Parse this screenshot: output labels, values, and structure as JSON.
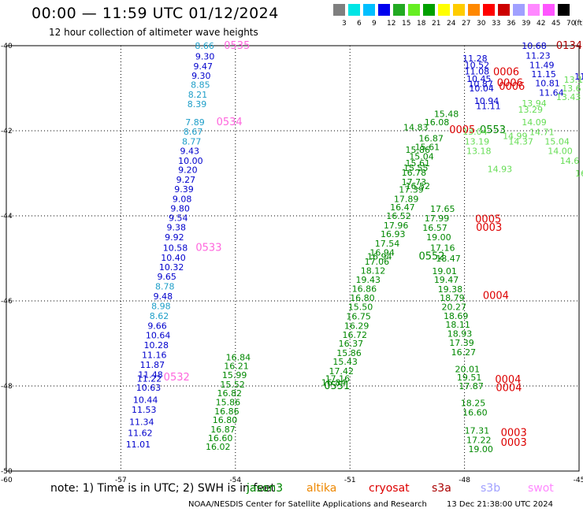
{
  "header": {
    "title": "00:00 — 11:59 UTC 01/12/2024",
    "subtitle": "12 hour collection of altimeter wave heights"
  },
  "legend": {
    "colors": [
      "#7f7f7f",
      "#00e5e5",
      "#00bfff",
      "#0000ee",
      "#22aa22",
      "#66ee22",
      "#00a000",
      "#ffff00",
      "#ffcc00",
      "#ff8800",
      "#ff0000",
      "#cc0000",
      "#a0a0ff",
      "#ff88ff",
      "#ff55ff",
      "#000000"
    ],
    "labels": [
      "3",
      "6",
      "9",
      "12",
      "15",
      "18",
      "21",
      "24",
      "27",
      "30",
      "33",
      "36",
      "39",
      "42",
      "45",
      "70",
      "(ft)"
    ]
  },
  "axes": {
    "x_ticks": [
      "-57",
      "-54",
      "-51",
      "-48",
      "-45"
    ],
    "y_ticks": [
      "-40",
      "-42",
      "-44",
      "-46",
      "-48",
      "-50"
    ],
    "corner_label": "-60"
  },
  "colors": {
    "blue": "#0000cc",
    "cyan": "#1e9ec8",
    "pink": "#ff66dd",
    "green": "#008800",
    "lightgreen": "#66dd55",
    "red": "#dd0000",
    "darkred": "#aa0000"
  },
  "map_labels": [
    {
      "t": "8.66",
      "c": "cyan",
      "lon": -55.06,
      "lat": -40.0
    },
    {
      "t": "0535",
      "c": "pink",
      "lon": -54.3,
      "lat": -40.0
    },
    {
      "t": "9.30",
      "c": "blue",
      "lon": -55.05,
      "lat": -40.25
    },
    {
      "t": "9.47",
      "c": "blue",
      "lon": -55.1,
      "lat": -40.48
    },
    {
      "t": "9.30",
      "c": "blue",
      "lon": -55.15,
      "lat": -40.7
    },
    {
      "t": "8.85",
      "c": "cyan",
      "lon": -55.17,
      "lat": -40.92
    },
    {
      "t": "8.21",
      "c": "cyan",
      "lon": -55.24,
      "lat": -41.15
    },
    {
      "t": "8.39",
      "c": "cyan",
      "lon": -55.26,
      "lat": -41.37
    },
    {
      "t": "7.89",
      "c": "cyan",
      "lon": -55.31,
      "lat": -41.8
    },
    {
      "t": "0534",
      "c": "pink",
      "lon": -54.5,
      "lat": -41.8
    },
    {
      "t": "8.67",
      "c": "cyan",
      "lon": -55.36,
      "lat": -42.02
    },
    {
      "t": "8.77",
      "c": "cyan",
      "lon": -55.4,
      "lat": -42.25
    },
    {
      "t": "9.43",
      "c": "blue",
      "lon": -55.45,
      "lat": -42.47
    },
    {
      "t": "10.00",
      "c": "blue",
      "lon": -55.5,
      "lat": -42.7
    },
    {
      "t": "9.20",
      "c": "blue",
      "lon": -55.5,
      "lat": -42.92
    },
    {
      "t": "9.27",
      "c": "blue",
      "lon": -55.55,
      "lat": -43.15
    },
    {
      "t": "9.39",
      "c": "blue",
      "lon": -55.6,
      "lat": -43.37
    },
    {
      "t": "9.08",
      "c": "blue",
      "lon": -55.65,
      "lat": -43.6
    },
    {
      "t": "9.80",
      "c": "blue",
      "lon": -55.7,
      "lat": -43.82
    },
    {
      "t": "9.54",
      "c": "blue",
      "lon": -55.75,
      "lat": -44.05
    },
    {
      "t": "9.38",
      "c": "blue",
      "lon": -55.8,
      "lat": -44.27
    },
    {
      "t": "9.92",
      "c": "blue",
      "lon": -55.85,
      "lat": -44.5
    },
    {
      "t": "10.58",
      "c": "blue",
      "lon": -55.9,
      "lat": -44.75
    },
    {
      "t": "0533",
      "c": "pink",
      "lon": -55.04,
      "lat": -44.75
    },
    {
      "t": "10.40",
      "c": "blue",
      "lon": -55.95,
      "lat": -44.98
    },
    {
      "t": "10.32",
      "c": "blue",
      "lon": -56.0,
      "lat": -45.2
    },
    {
      "t": "9.65",
      "c": "blue",
      "lon": -56.05,
      "lat": -45.43
    },
    {
      "t": "8.78",
      "c": "cyan",
      "lon": -56.1,
      "lat": -45.66
    },
    {
      "t": "9.48",
      "c": "blue",
      "lon": -56.15,
      "lat": -45.89
    },
    {
      "t": "8.98",
      "c": "cyan",
      "lon": -56.2,
      "lat": -46.12
    },
    {
      "t": "8.62",
      "c": "cyan",
      "lon": -56.25,
      "lat": -46.35
    },
    {
      "t": "9.66",
      "c": "blue",
      "lon": -56.3,
      "lat": -46.58
    },
    {
      "t": "10.64",
      "c": "blue",
      "lon": -56.35,
      "lat": -46.81
    },
    {
      "t": "10.28",
      "c": "blue",
      "lon": -56.4,
      "lat": -47.04
    },
    {
      "t": "11.16",
      "c": "blue",
      "lon": -56.45,
      "lat": -47.27
    },
    {
      "t": "11.87",
      "c": "blue",
      "lon": -56.5,
      "lat": -47.5
    },
    {
      "t": "11.48",
      "c": "blue",
      "lon": -56.55,
      "lat": -47.73
    },
    {
      "t": "0532",
      "c": "pink",
      "lon": -55.88,
      "lat": -47.8
    },
    {
      "t": "11.22",
      "c": "blue",
      "lon": -56.58,
      "lat": -47.82
    },
    {
      "t": "10.63",
      "c": "blue",
      "lon": -56.6,
      "lat": -48.04
    },
    {
      "t": "10.44",
      "c": "blue",
      "lon": -56.68,
      "lat": -48.32
    },
    {
      "t": "11.53",
      "c": "blue",
      "lon": -56.72,
      "lat": -48.56
    },
    {
      "t": "11.34",
      "c": "blue",
      "lon": -56.78,
      "lat": -48.84
    },
    {
      "t": "11.62",
      "c": "blue",
      "lon": -56.82,
      "lat": -49.1
    },
    {
      "t": "11.01",
      "c": "blue",
      "lon": -56.87,
      "lat": -49.37
    },
    {
      "t": "16.02",
      "c": "green",
      "lon": -54.78,
      "lat": -49.43
    },
    {
      "t": "16.60",
      "c": "green",
      "lon": -54.72,
      "lat": -49.22
    },
    {
      "t": "16.87",
      "c": "green",
      "lon": -54.65,
      "lat": -49.02
    },
    {
      "t": "16.80",
      "c": "green",
      "lon": -54.6,
      "lat": -48.8
    },
    {
      "t": "16.86",
      "c": "green",
      "lon": -54.55,
      "lat": -48.59
    },
    {
      "t": "16.82",
      "c": "green",
      "lon": -54.48,
      "lat": -48.17
    },
    {
      "t": "15.86",
      "c": "green",
      "lon": -54.52,
      "lat": -48.38
    },
    {
      "t": "15.52",
      "c": "green",
      "lon": -54.4,
      "lat": -47.96
    },
    {
      "t": "15.99",
      "c": "green",
      "lon": -54.35,
      "lat": -47.74
    },
    {
      "t": "16.21",
      "c": "green",
      "lon": -54.3,
      "lat": -47.53
    },
    {
      "t": "16.84",
      "c": "green",
      "lon": -54.25,
      "lat": -47.32
    },
    {
      "t": "0551",
      "c": "green",
      "lon": -51.68,
      "lat": -48.0
    },
    {
      "t": "17.16",
      "c": "green",
      "lon": -51.65,
      "lat": -47.82
    },
    {
      "t": "16.84",
      "c": "green",
      "lon": -51.75,
      "lat": -47.92
    },
    {
      "t": "17.42",
      "c": "green",
      "lon": -51.55,
      "lat": -47.65
    },
    {
      "t": "15.43",
      "c": "green",
      "lon": -51.45,
      "lat": -47.43
    },
    {
      "t": "15.86",
      "c": "green",
      "lon": -51.35,
      "lat": -47.22
    },
    {
      "t": "16.37",
      "c": "green",
      "lon": -51.3,
      "lat": -47.0
    },
    {
      "t": "16.72",
      "c": "green",
      "lon": -51.2,
      "lat": -46.8
    },
    {
      "t": "16.29",
      "c": "green",
      "lon": -51.15,
      "lat": -46.58
    },
    {
      "t": "16.75",
      "c": "green",
      "lon": -51.1,
      "lat": -46.36
    },
    {
      "t": "15.50",
      "c": "green",
      "lon": -51.05,
      "lat": -46.14
    },
    {
      "t": "16.80",
      "c": "green",
      "lon": -51.0,
      "lat": -45.93
    },
    {
      "t": "16.86",
      "c": "green",
      "lon": -50.95,
      "lat": -45.71
    },
    {
      "t": "19.43",
      "c": "green",
      "lon": -50.85,
      "lat": -45.5
    },
    {
      "t": "18.12",
      "c": "green",
      "lon": -50.72,
      "lat": -45.29
    },
    {
      "t": "17.06",
      "c": "green",
      "lon": -50.62,
      "lat": -45.07
    },
    {
      "t": "16.94",
      "c": "green",
      "lon": -50.48,
      "lat": -44.86
    },
    {
      "t": "16.94",
      "c": "green",
      "lon": -50.55,
      "lat": -44.95
    },
    {
      "t": "0552",
      "c": "green",
      "lon": -49.2,
      "lat": -44.95
    },
    {
      "t": "17.54",
      "c": "green",
      "lon": -50.35,
      "lat": -44.65
    },
    {
      "t": "16.93",
      "c": "green",
      "lon": -50.2,
      "lat": -44.43
    },
    {
      "t": "17.96",
      "c": "green",
      "lon": -50.12,
      "lat": -44.22
    },
    {
      "t": "16.52",
      "c": "green",
      "lon": -50.05,
      "lat": -44.0
    },
    {
      "t": "16.47",
      "c": "green",
      "lon": -49.95,
      "lat": -43.8
    },
    {
      "t": "17.89",
      "c": "green",
      "lon": -49.85,
      "lat": -43.6
    },
    {
      "t": "17.39",
      "c": "green",
      "lon": -49.72,
      "lat": -43.38
    },
    {
      "t": "17.73",
      "c": "green",
      "lon": -49.65,
      "lat": -43.2
    },
    {
      "t": "16.52",
      "c": "green",
      "lon": -49.55,
      "lat": -43.3
    },
    {
      "t": "16.78",
      "c": "green",
      "lon": -49.65,
      "lat": -42.98
    },
    {
      "t": "15.61",
      "c": "green",
      "lon": -49.55,
      "lat": -42.76
    },
    {
      "t": "15.55",
      "c": "green",
      "lon": -49.6,
      "lat": -42.87
    },
    {
      "t": "15.04",
      "c": "green",
      "lon": -49.45,
      "lat": -42.6
    },
    {
      "t": "15.86",
      "c": "green",
      "lon": -49.55,
      "lat": -42.44
    },
    {
      "t": "15.61",
      "c": "green",
      "lon": -49.3,
      "lat": -42.38
    },
    {
      "t": "16.87",
      "c": "green",
      "lon": -49.2,
      "lat": -42.18
    },
    {
      "t": "14.83",
      "c": "green",
      "lon": -49.6,
      "lat": -41.92
    },
    {
      "t": "0005",
      "c": "red",
      "lon": -48.4,
      "lat": -41.98
    },
    {
      "t": "0553",
      "c": "green",
      "lon": -47.6,
      "lat": -41.98
    },
    {
      "t": "16.08",
      "c": "green",
      "lon": -49.05,
      "lat": -41.8
    },
    {
      "t": "15.48",
      "c": "green",
      "lon": -48.8,
      "lat": -41.6
    },
    {
      "t": "17.65",
      "c": "green",
      "lon": -48.9,
      "lat": -43.83
    },
    {
      "t": "17.99",
      "c": "green",
      "lon": -49.05,
      "lat": -44.06
    },
    {
      "t": "16.57",
      "c": "green",
      "lon": -49.1,
      "lat": -44.28
    },
    {
      "t": "0005",
      "c": "red",
      "lon": -47.72,
      "lat": -44.08
    },
    {
      "t": "0003",
      "c": "red",
      "lon": -47.7,
      "lat": -44.28
    },
    {
      "t": "19.00",
      "c": "green",
      "lon": -49.0,
      "lat": -44.5
    },
    {
      "t": "17.16",
      "c": "green",
      "lon": -48.9,
      "lat": -44.75
    },
    {
      "t": "18.47",
      "c": "green",
      "lon": -48.75,
      "lat": -45.0
    },
    {
      "t": "19.01",
      "c": "green",
      "lon": -48.85,
      "lat": -45.3
    },
    {
      "t": "19.47",
      "c": "green",
      "lon": -48.8,
      "lat": -45.5
    },
    {
      "t": "19.38",
      "c": "green",
      "lon": -48.7,
      "lat": -45.72
    },
    {
      "t": "18.79",
      "c": "green",
      "lon": -48.65,
      "lat": -45.93
    },
    {
      "t": "0004",
      "c": "red",
      "lon": -47.52,
      "lat": -45.88
    },
    {
      "t": "20.27",
      "c": "green",
      "lon": -48.6,
      "lat": -46.14
    },
    {
      "t": "18.69",
      "c": "green",
      "lon": -48.55,
      "lat": -46.35
    },
    {
      "t": "18.11",
      "c": "green",
      "lon": -48.5,
      "lat": -46.56
    },
    {
      "t": "18.93",
      "c": "green",
      "lon": -48.45,
      "lat": -46.77
    },
    {
      "t": "17.39",
      "c": "green",
      "lon": -48.4,
      "lat": -46.98
    },
    {
      "t": "16.27",
      "c": "green",
      "lon": -48.35,
      "lat": -47.2
    },
    {
      "t": "20.01",
      "c": "green",
      "lon": -48.25,
      "lat": -47.6
    },
    {
      "t": "0004",
      "c": "red",
      "lon": -47.2,
      "lat": -47.85
    },
    {
      "t": "19.51",
      "c": "green",
      "lon": -48.2,
      "lat": -47.8
    },
    {
      "t": "0004",
      "c": "red",
      "lon": -47.18,
      "lat": -48.05
    },
    {
      "t": "17.87",
      "c": "green",
      "lon": -48.15,
      "lat": -48.0
    },
    {
      "t": "18.25",
      "c": "green",
      "lon": -48.1,
      "lat": -48.4
    },
    {
      "t": "16.60",
      "c": "green",
      "lon": -48.05,
      "lat": -48.62
    },
    {
      "t": "17.31",
      "c": "green",
      "lon": -48.0,
      "lat": -49.05
    },
    {
      "t": "0003",
      "c": "red",
      "lon": -47.05,
      "lat": -49.1
    },
    {
      "t": "17.22",
      "c": "green",
      "lon": -47.95,
      "lat": -49.27
    },
    {
      "t": "19.00",
      "c": "green",
      "lon": -47.9,
      "lat": -49.48
    },
    {
      "t": "0003",
      "c": "red",
      "lon": -47.05,
      "lat": -49.33
    },
    {
      "t": "11.28",
      "c": "blue",
      "lon": -48.05,
      "lat": -40.3
    },
    {
      "t": "10.52",
      "c": "blue",
      "lon": -48.0,
      "lat": -40.45
    },
    {
      "t": "11.08",
      "c": "blue",
      "lon": -48.0,
      "lat": -40.6
    },
    {
      "t": "10.45",
      "c": "blue",
      "lon": -47.95,
      "lat": -40.78
    },
    {
      "t": "10.87",
      "c": "blue",
      "lon": -47.9,
      "lat": -40.9
    },
    {
      "t": "10.04",
      "c": "blue",
      "lon": -47.88,
      "lat": -41.0
    },
    {
      "t": "0006",
      "c": "red",
      "lon": -47.25,
      "lat": -40.62
    },
    {
      "t": "0006",
      "c": "red",
      "lon": -47.15,
      "lat": -40.88
    },
    {
      "t": "0006",
      "c": "red",
      "lon": -47.1,
      "lat": -40.96
    },
    {
      "t": "10.94",
      "c": "blue",
      "lon": -47.75,
      "lat": -41.3
    },
    {
      "t": "11.11",
      "c": "blue",
      "lon": -47.7,
      "lat": -41.42
    },
    {
      "t": "10.68",
      "c": "blue",
      "lon": -46.5,
      "lat": -40.0
    },
    {
      "t": "0134",
      "c": "darkred",
      "lon": -45.6,
      "lat": -40.0
    },
    {
      "t": "11.23",
      "c": "blue",
      "lon": -46.4,
      "lat": -40.23
    },
    {
      "t": "11.49",
      "c": "blue",
      "lon": -46.3,
      "lat": -40.45
    },
    {
      "t": "11.15",
      "c": "blue",
      "lon": -46.25,
      "lat": -40.67
    },
    {
      "t": "10.81",
      "c": "blue",
      "lon": -46.15,
      "lat": -40.88
    },
    {
      "t": "11.64",
      "c": "blue",
      "lon": -46.05,
      "lat": -41.1
    },
    {
      "t": "11",
      "c": "blue",
      "lon": -45.12,
      "lat": -40.72
    },
    {
      "t": "13.04",
      "c": "lightgreen",
      "lon": -48.05,
      "lat": -42.02
    },
    {
      "t": "13.19",
      "c": "lightgreen",
      "lon": -48.0,
      "lat": -42.25
    },
    {
      "t": "13.18",
      "c": "lightgreen",
      "lon": -47.95,
      "lat": -42.47
    },
    {
      "t": "14.93",
      "c": "lightgreen",
      "lon": -47.4,
      "lat": -42.9
    },
    {
      "t": "14.99",
      "c": "lightgreen",
      "lon": -47.0,
      "lat": -42.12
    },
    {
      "t": "14.37",
      "c": "lightgreen",
      "lon": -46.85,
      "lat": -42.25
    },
    {
      "t": "14.71",
      "c": "lightgreen",
      "lon": -46.3,
      "lat": -42.03
    },
    {
      "t": "15.04",
      "c": "lightgreen",
      "lon": -45.9,
      "lat": -42.25
    },
    {
      "t": "14.00",
      "c": "lightgreen",
      "lon": -45.82,
      "lat": -42.47
    },
    {
      "t": "14.6",
      "c": "lightgreen",
      "lon": -45.5,
      "lat": -42.7
    },
    {
      "t": "14.09",
      "c": "lightgreen",
      "lon": -46.5,
      "lat": -41.8
    },
    {
      "t": "13.29",
      "c": "lightgreen",
      "lon": -46.6,
      "lat": -41.5
    },
    {
      "t": "13.94",
      "c": "lightgreen",
      "lon": -46.5,
      "lat": -41.35
    },
    {
      "t": "13.43",
      "c": "lightgreen",
      "lon": -45.6,
      "lat": -41.2
    },
    {
      "t": "13.6",
      "c": "lightgreen",
      "lon": -45.45,
      "lat": -41.0
    },
    {
      "t": "13.1",
      "c": "lightgreen",
      "lon": -45.4,
      "lat": -40.8
    },
    {
      "t": "16",
      "c": "lightgreen",
      "lon": -45.1,
      "lat": -43.0
    }
  ],
  "note": {
    "prefix": "note: 1) Time is in UTC; 2) SWH is in feet",
    "sats": [
      {
        "t": "jason3",
        "c": "#008800",
        "x": 313
      },
      {
        "t": "altika",
        "c": "#ee8800",
        "x": 389
      },
      {
        "t": "cryosat",
        "c": "#dd0000",
        "x": 468
      },
      {
        "t": "s3a",
        "c": "#aa0000",
        "x": 548
      },
      {
        "t": "s3b",
        "c": "#a0a0ff",
        "x": 610
      },
      {
        "t": "swot",
        "c": "#ff88ff",
        "x": 670
      }
    ]
  },
  "footer": {
    "left": "NOAA/NESDIS Center for Satellite Applications and Research",
    "right": "13 Dec 21:38:00 UTC 2024"
  }
}
